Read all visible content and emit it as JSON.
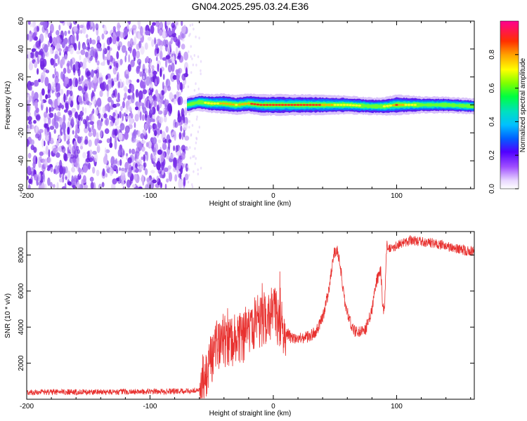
{
  "figure": {
    "title": "GN04.2025.295.03.24.E36"
  },
  "colors": {
    "snr_line": "#e8312f",
    "axis": "#000000",
    "background": "#ffffff"
  },
  "chart_data": [
    {
      "type": "heatmap",
      "xlabel": "Height of straight line (km)",
      "ylabel": "Frequency (Hz)",
      "xlim": [
        -200,
        163
      ],
      "ylim": [
        -60,
        60
      ],
      "xticks": [
        -200,
        -100,
        0,
        100
      ],
      "yticks": [
        -60,
        -40,
        -20,
        0,
        20,
        40,
        60
      ],
      "colorbar": {
        "label": "Normalized spectral amplitude",
        "range": [
          0,
          1
        ],
        "ticks": [
          "0.0",
          "0.2",
          "0.4",
          "0.6",
          "0.8"
        ]
      },
      "noise_region_x": [
        -200,
        -70
      ],
      "ridge": {
        "x": [
          -70,
          -60,
          -50,
          -40,
          -30,
          -20,
          -10,
          0,
          10,
          20,
          40,
          60,
          80,
          90,
          100,
          120,
          140,
          163
        ],
        "freq_hz": [
          0,
          2,
          1,
          1,
          0,
          1,
          0,
          0,
          0,
          0,
          0,
          0,
          -1,
          -1,
          0,
          0,
          0,
          -1
        ],
        "amplitude": [
          0.5,
          0.55,
          0.7,
          0.8,
          0.75,
          0.85,
          0.9,
          0.95,
          0.95,
          0.9,
          0.85,
          0.65,
          0.55,
          0.6,
          0.9,
          0.5,
          0.45,
          0.4
        ]
      }
    },
    {
      "type": "line",
      "xlabel": "Height of straight line (km)",
      "ylabel": "SNR (10 * v/v)",
      "xlim": [
        -200,
        163
      ],
      "ylim": [
        0,
        9300
      ],
      "xticks": [
        -200,
        -100,
        0,
        100
      ],
      "yticks": [
        2000,
        4000,
        6000,
        8000
      ],
      "series": [
        {
          "x": [
            -200,
            -150,
            -100,
            -70,
            -60,
            -55,
            -50,
            -45,
            -40,
            -35,
            -30,
            -25,
            -20,
            -15,
            -10,
            -5,
            0,
            5,
            10,
            15,
            20,
            25,
            30,
            35,
            40,
            45,
            48,
            50,
            52,
            55,
            58,
            62,
            66,
            70,
            75,
            80,
            84,
            87,
            89,
            90,
            92,
            95,
            100,
            105,
            110,
            120,
            130,
            140,
            150,
            163
          ],
          "y": [
            380,
            400,
            420,
            450,
            500,
            1400,
            2400,
            3000,
            3300,
            3000,
            3600,
            3400,
            4000,
            4200,
            4300,
            4600,
            4800,
            4300,
            3700,
            3400,
            3300,
            3400,
            3500,
            3800,
            4500,
            6000,
            7600,
            8300,
            8200,
            7000,
            5400,
            4300,
            3800,
            3700,
            3900,
            5000,
            6600,
            7200,
            5000,
            4800,
            8600,
            8400,
            8500,
            8700,
            8800,
            8750,
            8650,
            8500,
            8300,
            8200
          ]
        }
      ]
    }
  ]
}
